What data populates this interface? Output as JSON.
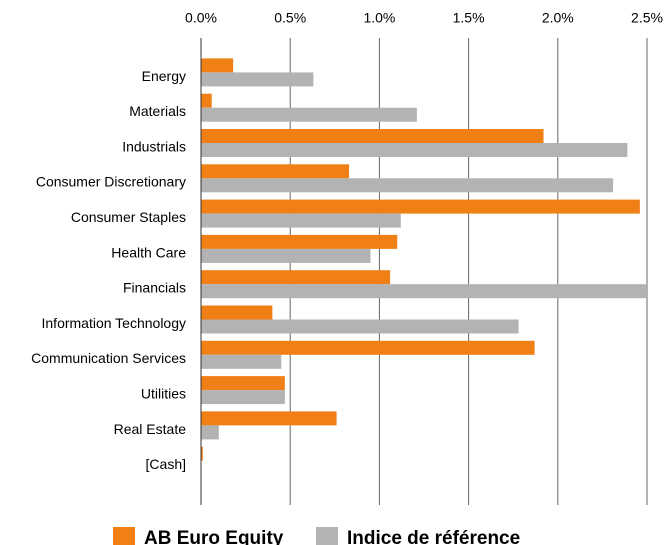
{
  "chart_data": {
    "type": "bar",
    "orientation": "horizontal",
    "categories": [
      "Energy",
      "Materials",
      "Industrials",
      "Consumer Discretionary",
      "Consumer Staples",
      "Health Care",
      "Financials",
      "Information Technology",
      "Communication Services",
      "Utilities",
      "Real Estate",
      "[Cash]"
    ],
    "series": [
      {
        "name": "AB Euro Equity",
        "color": "#f07f16",
        "values": [
          0.18,
          0.06,
          1.92,
          0.83,
          2.46,
          1.1,
          1.06,
          0.4,
          1.87,
          0.47,
          0.76,
          0.01
        ]
      },
      {
        "name": "Indice de référence",
        "color": "#b3b3b3",
        "values": [
          0.63,
          1.21,
          2.39,
          2.31,
          1.12,
          0.95,
          2.5,
          1.78,
          0.45,
          0.47,
          0.1,
          0.0
        ]
      }
    ],
    "xlim": [
      0,
      2.5
    ],
    "xticks": [
      {
        "value": 0,
        "label": "0.0%"
      },
      {
        "value": 0.5,
        "label": "0.5%"
      },
      {
        "value": 1.0,
        "label": "1.0%"
      },
      {
        "value": 1.5,
        "label": "1.5%"
      },
      {
        "value": 2.0,
        "label": "2.0%"
      },
      {
        "value": 2.5,
        "label": "2.5%"
      }
    ],
    "grid": true,
    "legend": "bottom"
  }
}
